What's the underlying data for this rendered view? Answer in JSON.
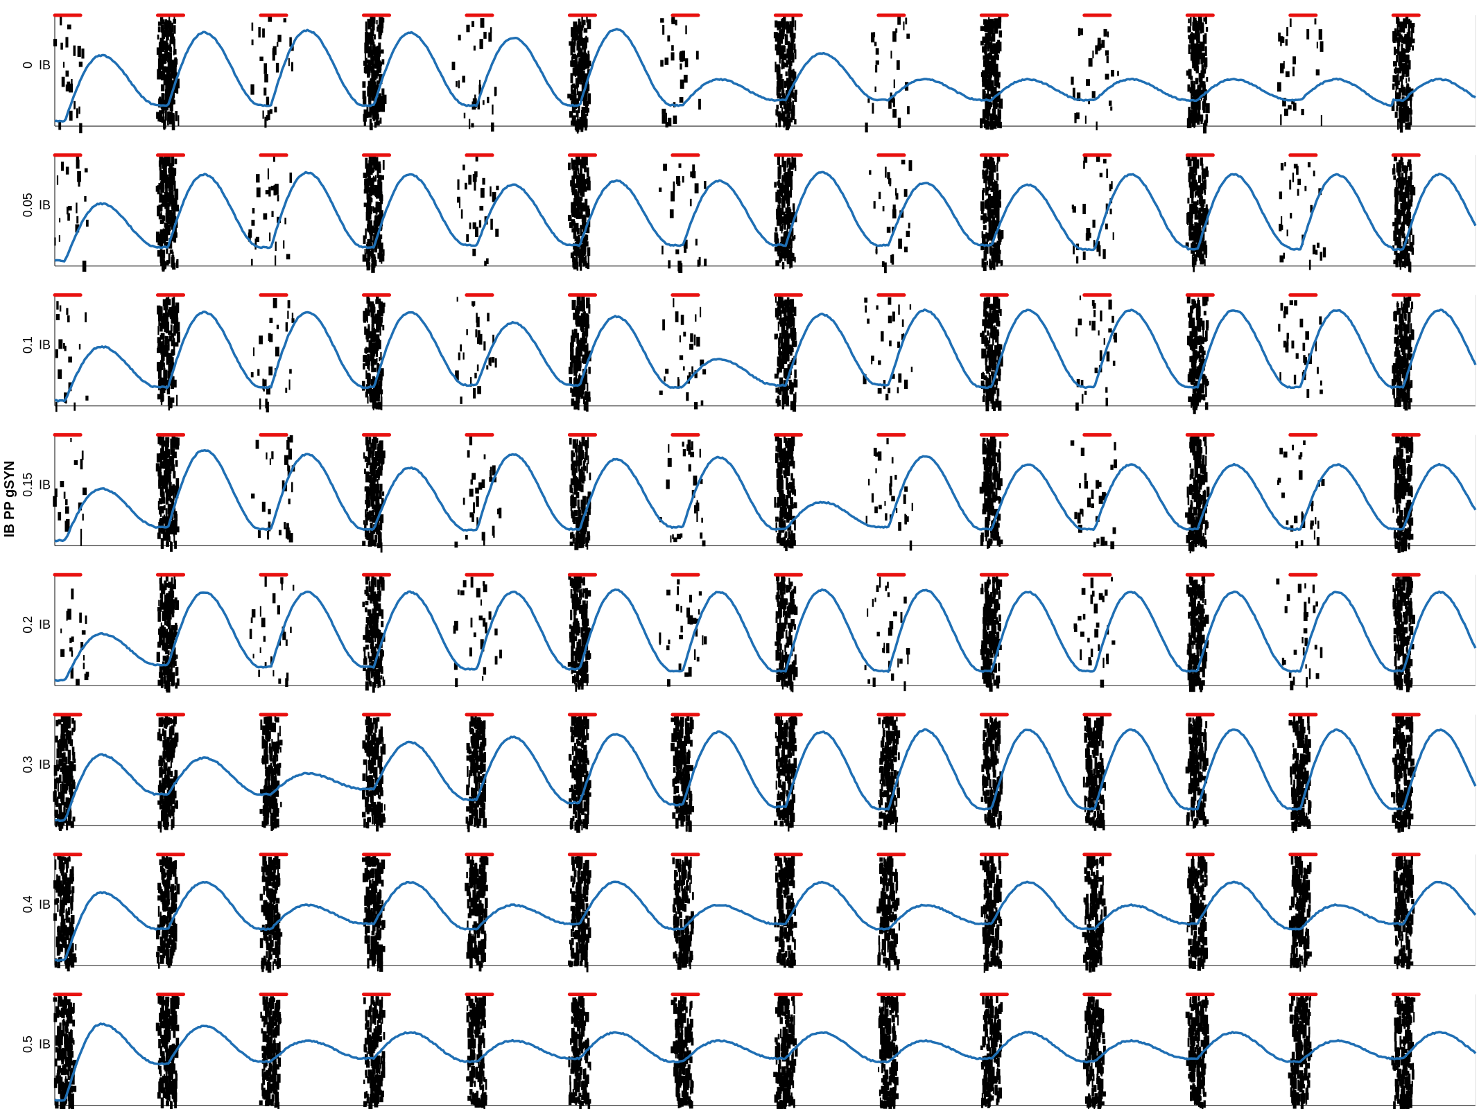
{
  "figure": {
    "ylabel": "IB PP gSYN",
    "row_tick_label": "IB",
    "colors": {
      "spikes": "#000000",
      "trace": "#1f6fb4",
      "stim": "#e8110f",
      "axis": "#333333"
    }
  },
  "chart_data": {
    "type": "raster+line",
    "stim_period": 1,
    "stim_count": 14,
    "stim_width": 0.25,
    "x_range": [
      0,
      13.8
    ],
    "panels": [
      {
        "label": "0",
        "peaks": [
          0.68,
          0.9,
          0.92,
          0.9,
          0.85,
          0.93,
          0.45,
          0.7,
          0.45,
          0.45,
          0.45,
          0.45,
          0.45
        ],
        "troughs": [
          0.2,
          0.2,
          0.2,
          0.2,
          0.2,
          0.2,
          0.25,
          0.25,
          0.25,
          0.25,
          0.25,
          0.25,
          0.2
        ]
      },
      {
        "label": "0.05",
        "peaks": [
          0.6,
          0.88,
          0.9,
          0.88,
          0.78,
          0.82,
          0.82,
          0.9,
          0.8,
          0.78,
          0.88
        ],
        "troughs": [
          0.18,
          0.18,
          0.18,
          0.2,
          0.2,
          0.2,
          0.2,
          0.2,
          0.2,
          0.16,
          0.18
        ]
      },
      {
        "label": "0.1",
        "peaks": [
          0.57,
          0.9,
          0.9,
          0.9,
          0.8,
          0.86,
          0.45,
          0.88,
          0.92,
          0.92
        ],
        "troughs": [
          0.18,
          0.18,
          0.18,
          0.2,
          0.2,
          0.18,
          0.2,
          0.2,
          0.18,
          0.18
        ]
      },
      {
        "label": "0.15",
        "peaks": [
          0.55,
          0.92,
          0.88,
          0.75,
          0.88,
          0.83,
          0.85,
          0.42,
          0.86,
          0.78
        ],
        "troughs": [
          0.18,
          0.16,
          0.16,
          0.15,
          0.16,
          0.18,
          0.16,
          0.18,
          0.16,
          0.16
        ]
      },
      {
        "label": "0.2",
        "peaks": [
          0.5,
          0.9,
          0.9,
          0.9,
          0.9,
          0.92,
          0.9,
          0.92,
          0.92,
          0.9
        ],
        "troughs": [
          0.2,
          0.18,
          0.18,
          0.16,
          0.16,
          0.14,
          0.14,
          0.14,
          0.14,
          0.14
        ]
      },
      {
        "label": "0.3",
        "peaks": [
          0.68,
          0.65,
          0.5,
          0.8,
          0.85,
          0.88,
          0.9,
          0.9,
          0.92,
          0.92
        ],
        "troughs": [
          0.3,
          0.3,
          0.35,
          0.25,
          0.22,
          0.2,
          0.18,
          0.16,
          0.16,
          0.16
        ]
      },
      {
        "label": "0.4",
        "peaks": [
          0.7,
          0.8,
          0.58,
          0.8,
          0.58,
          0.8,
          0.58,
          0.8,
          0.58,
          0.8,
          0.58,
          0.8,
          0.58,
          0.8
        ],
        "troughs": [
          0.35,
          0.35,
          0.4,
          0.35,
          0.4,
          0.35,
          0.4,
          0.35,
          0.4,
          0.35,
          0.4,
          0.35,
          0.4,
          0.35
        ]
      },
      {
        "label": "0.5",
        "peaks": [
          0.78,
          0.76,
          0.62,
          0.7,
          0.62,
          0.7,
          0.62,
          0.7,
          0.62,
          0.7,
          0.62,
          0.7,
          0.62,
          0.7
        ],
        "troughs": [
          0.4,
          0.42,
          0.45,
          0.42,
          0.45,
          0.42,
          0.45,
          0.42,
          0.45,
          0.42,
          0.45,
          0.42,
          0.45,
          0.42
        ]
      }
    ]
  }
}
